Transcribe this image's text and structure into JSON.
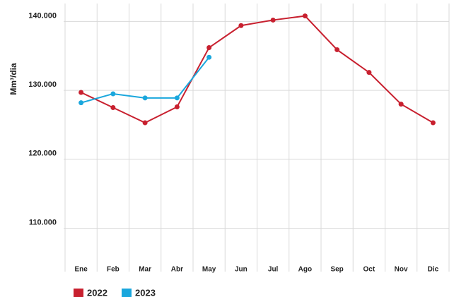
{
  "chart_data": {
    "type": "line",
    "y_label": "Mm³/dia",
    "categories": [
      "Ene",
      "Feb",
      "Mar",
      "Abr",
      "May",
      "Jun",
      "Jul",
      "Ago",
      "Sep",
      "Oct",
      "Nov",
      "Dic"
    ],
    "series": [
      {
        "name": "2022",
        "color": "#c8202f",
        "values": [
          129700,
          127500,
          125300,
          127600,
          136200,
          139400,
          140200,
          140800,
          135900,
          132600,
          128000,
          125300
        ]
      },
      {
        "name": "2023",
        "color": "#1aa7dd",
        "values": [
          128200,
          129500,
          128900,
          128900,
          134800,
          null,
          null,
          null,
          null,
          null,
          null,
          null
        ]
      }
    ],
    "ylim": [
      103700,
      142600
    ],
    "yticks": [
      {
        "value": 110000,
        "label": "110.000"
      },
      {
        "value": 120000,
        "label": "120.000"
      },
      {
        "value": 130000,
        "label": "130.000"
      },
      {
        "value": 140000,
        "label": "140.000"
      }
    ],
    "grid": true,
    "legend": "bottom-left"
  }
}
